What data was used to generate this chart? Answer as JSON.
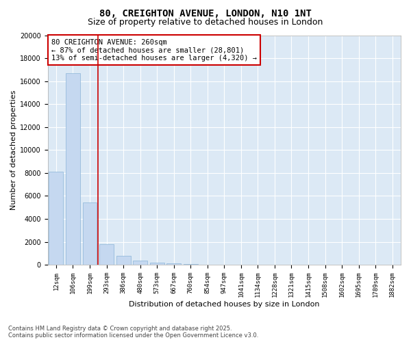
{
  "title_line1": "80, CREIGHTON AVENUE, LONDON, N10 1NT",
  "title_line2": "Size of property relative to detached houses in London",
  "xlabel": "Distribution of detached houses by size in London",
  "ylabel": "Number of detached properties",
  "bar_color": "#c5d8f0",
  "bar_edge_color": "#8ab4d8",
  "bg_color": "#dce9f5",
  "grid_color": "#ffffff",
  "vline_color": "#cc0000",
  "annotation_box_color": "#cc0000",
  "fig_bg_color": "#ffffff",
  "categories": [
    "12sqm",
    "106sqm",
    "199sqm",
    "293sqm",
    "386sqm",
    "480sqm",
    "573sqm",
    "667sqm",
    "760sqm",
    "854sqm",
    "947sqm",
    "1041sqm",
    "1134sqm",
    "1228sqm",
    "1321sqm",
    "1415sqm",
    "1508sqm",
    "1602sqm",
    "1695sqm",
    "1789sqm",
    "1882sqm"
  ],
  "values": [
    8100,
    16700,
    5400,
    1800,
    800,
    350,
    200,
    150,
    50,
    0,
    0,
    0,
    0,
    0,
    0,
    0,
    0,
    0,
    0,
    0,
    0
  ],
  "vline_position": 2.5,
  "annotation_title": "80 CREIGHTON AVENUE: 260sqm",
  "annotation_line1": "← 87% of detached houses are smaller (28,801)",
  "annotation_line2": "13% of semi-detached houses are larger (4,320) →",
  "ylim": [
    0,
    20000
  ],
  "yticks": [
    0,
    2000,
    4000,
    6000,
    8000,
    10000,
    12000,
    14000,
    16000,
    18000,
    20000
  ],
  "footnote": "Contains HM Land Registry data © Crown copyright and database right 2025.\nContains public sector information licensed under the Open Government Licence v3.0.",
  "title_fontsize": 10,
  "subtitle_fontsize": 9,
  "tick_fontsize": 6.5,
  "label_fontsize": 8,
  "annot_fontsize": 7.5,
  "footnote_fontsize": 6
}
